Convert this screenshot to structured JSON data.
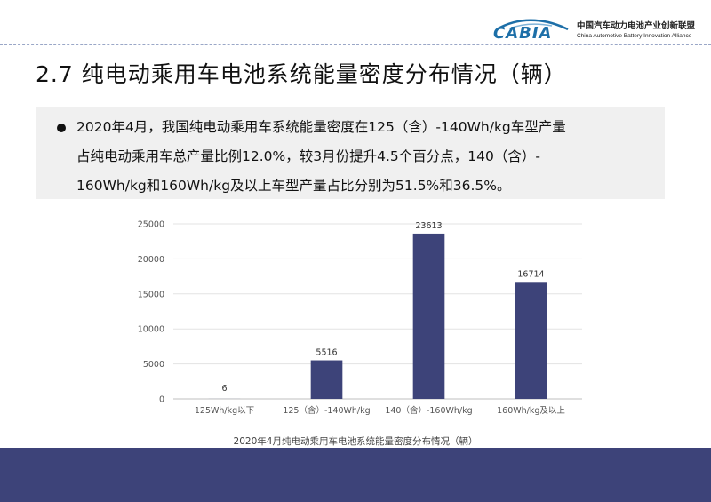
{
  "header": {
    "logo_word": "CABIA",
    "org_name_cn": "中国汽车动力电池产业创新联盟",
    "org_name_en": "China Automotive Battery Innovation Alliance"
  },
  "slide": {
    "title": "2.7 纯电动乘用车电池系统能量密度分布情况（辆）",
    "summary_lines": [
      "2020年4月，我国纯电动乘用车系统能量密度在125（含）-140Wh/kg车型产量",
      "占纯电动乘用车总产量比例12.0%，较3月份提升4.5个百分点，140（含）-",
      "160Wh/kg和160Wh/kg及以上车型产量占比分别为51.5%和36.5%。"
    ]
  },
  "colors": {
    "bar": "#3d4379",
    "footer": "#3d4379",
    "summary_bg": "#f0f0f0",
    "logo_blue": "#1d6fa8"
  },
  "chart_data": {
    "type": "bar",
    "title": "2020年4月纯电动乘用车电池系统能量密度分布情况（辆）",
    "categories": [
      "125Wh/kg以下",
      "125（含）-140Wh/kg",
      "140（含）-160Wh/kg",
      "160Wh/kg及以上"
    ],
    "values": [
      6,
      5516,
      23613,
      16714
    ],
    "data_labels": [
      "6",
      "5516",
      "23613",
      "16714"
    ],
    "ylim": [
      0,
      25000
    ],
    "yticks": [
      "0",
      "5000",
      "10000",
      "15000",
      "20000",
      "25000"
    ],
    "grid": true,
    "legend": "none"
  }
}
